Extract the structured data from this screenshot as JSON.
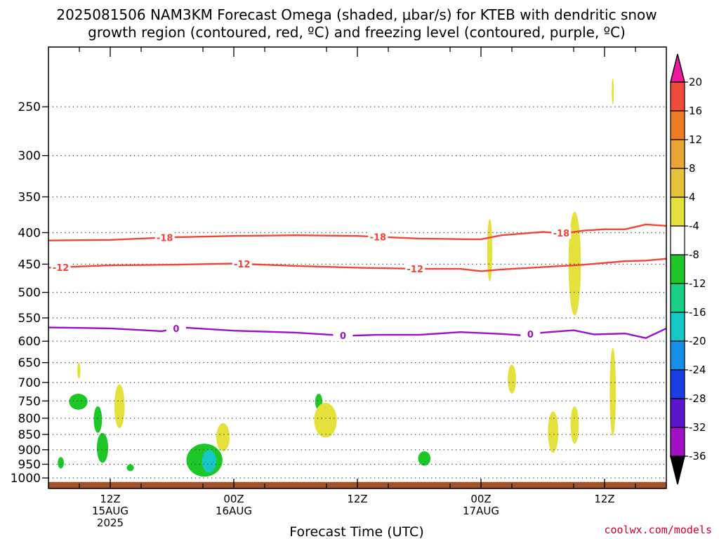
{
  "title": {
    "line1": "2025081506 NAM3KM Forecast Omega (shaded, μbar/s) for KTEB with dendritic snow",
    "line2": "growth region (contoured, red, ºC) and freezing level (contoured, purple, ºC)"
  },
  "credit": "coolwx.com/models",
  "chart_data": {
    "type": "time-height",
    "xlabel": "Forecast Time (UTC)",
    "ylabel": "",
    "y_scale": "log-pressure",
    "ylim": [
      1040,
      200
    ],
    "grid": true,
    "x_range_hours": [
      0,
      60
    ],
    "y_ticks": [
      250,
      300,
      350,
      400,
      450,
      500,
      550,
      600,
      650,
      700,
      750,
      800,
      850,
      900,
      950,
      1000
    ],
    "x_ticks": [
      {
        "hour": 6,
        "label": "12Z",
        "date": "15AUG",
        "year": "2025"
      },
      {
        "hour": 18,
        "label": "00Z",
        "date": "16AUG",
        "year": ""
      },
      {
        "hour": 30,
        "label": "12Z",
        "date": "",
        "year": ""
      },
      {
        "hour": 42,
        "label": "00Z",
        "date": "17AUG",
        "year": ""
      },
      {
        "hour": 54,
        "label": "12Z",
        "date": "",
        "year": ""
      }
    ],
    "colorbar": {
      "labels": [
        "20",
        "16",
        "12",
        "8",
        "4",
        "-4",
        "-8",
        "-12",
        "-16",
        "-20",
        "-24",
        "-28",
        "-32",
        "-36"
      ],
      "colors": [
        "#ee1a9e",
        "#f04a3a",
        "#ef7a26",
        "#e9a637",
        "#e6c23a",
        "#e4e03c",
        "#ffffff",
        "#1dc826",
        "#19cf84",
        "#17c7c6",
        "#1590e8",
        "#1b3ee4",
        "#5c15c8",
        "#a30fc6",
        "#a5a5a5",
        "#000000"
      ]
    },
    "contours": [
      {
        "name": "-18",
        "color": "#f0453a",
        "label_hours": [
          11.3,
          32.0,
          49.8
        ],
        "points": [
          [
            0,
            412
          ],
          [
            6,
            411
          ],
          [
            12,
            407
          ],
          [
            18,
            405
          ],
          [
            24,
            404
          ],
          [
            30,
            405
          ],
          [
            36,
            409
          ],
          [
            41,
            410
          ],
          [
            42,
            410
          ],
          [
            44,
            404
          ],
          [
            48,
            399
          ],
          [
            50,
            401
          ],
          [
            52,
            397
          ],
          [
            54,
            395
          ],
          [
            56,
            395
          ],
          [
            58,
            388
          ],
          [
            60,
            390
          ]
        ]
      },
      {
        "name": "-12",
        "color": "#f0453a",
        "label_hours": [
          1.2,
          18.8,
          35.6
        ],
        "points": [
          [
            0,
            456
          ],
          [
            6,
            452
          ],
          [
            12,
            451
          ],
          [
            18,
            449
          ],
          [
            24,
            453
          ],
          [
            30,
            456
          ],
          [
            36,
            458
          ],
          [
            40,
            458
          ],
          [
            42,
            462
          ],
          [
            44,
            459
          ],
          [
            48,
            455
          ],
          [
            52,
            451
          ],
          [
            56,
            445
          ],
          [
            58,
            444
          ],
          [
            60,
            441
          ]
        ]
      },
      {
        "name": "0",
        "color": "#9b12c6",
        "label_hours": [
          12.4,
          28.6,
          46.8
        ],
        "points": [
          [
            0,
            570
          ],
          [
            6,
            572
          ],
          [
            11,
            578
          ],
          [
            13,
            570
          ],
          [
            18,
            577
          ],
          [
            24,
            581
          ],
          [
            29,
            588
          ],
          [
            32,
            586
          ],
          [
            36,
            586
          ],
          [
            40,
            580
          ],
          [
            44,
            584
          ],
          [
            46,
            587
          ],
          [
            48,
            581
          ],
          [
            51,
            576
          ],
          [
            53,
            585
          ],
          [
            56,
            583
          ],
          [
            58,
            593
          ],
          [
            60,
            572
          ]
        ]
      }
    ],
    "shading": [
      {
        "value": -8,
        "hour_range": [
          0.9,
          1.5
        ],
        "p_range": [
          925,
          965
        ]
      },
      {
        "value": -8,
        "hour_range": [
          2.0,
          3.8
        ],
        "p_range": [
          730,
          775
        ]
      },
      {
        "value": -8,
        "hour_range": [
          4.4,
          5.2
        ],
        "p_range": [
          765,
          845
        ]
      },
      {
        "value": -8,
        "hour_range": [
          4.7,
          5.8
        ],
        "p_range": [
          845,
          945
        ]
      },
      {
        "value": -8,
        "hour_range": [
          7.6,
          8.3
        ],
        "p_range": [
          950,
          975
        ]
      },
      {
        "value": -8,
        "hour_range": [
          13.4,
          16.9
        ],
        "p_range": [
          880,
          995
        ]
      },
      {
        "value": -16,
        "hour_range": [
          14.9,
          16.3
        ],
        "p_range": [
          900,
          980
        ]
      },
      {
        "value": -8,
        "hour_range": [
          25.9,
          26.6
        ],
        "p_range": [
          730,
          775
        ]
      },
      {
        "value": -8,
        "hour_range": [
          35.9,
          37.1
        ],
        "p_range": [
          905,
          955
        ]
      },
      {
        "value": 4,
        "hour_range": [
          2.8,
          3.1
        ],
        "p_range": [
          650,
          690
        ]
      },
      {
        "value": 4,
        "hour_range": [
          6.4,
          7.4
        ],
        "p_range": [
          705,
          830
        ]
      },
      {
        "value": 4,
        "hour_range": [
          16.3,
          17.6
        ],
        "p_range": [
          815,
          905
        ]
      },
      {
        "value": 4,
        "hour_range": [
          25.8,
          28.0
        ],
        "p_range": [
          755,
          860
        ]
      },
      {
        "value": 4,
        "hour_range": [
          42.6,
          43.1
        ],
        "p_range": [
          380,
          480
        ]
      },
      {
        "value": 4,
        "hour_range": [
          44.6,
          45.4
        ],
        "p_range": [
          655,
          730
        ]
      },
      {
        "value": 4,
        "hour_range": [
          48.5,
          49.5
        ],
        "p_range": [
          780,
          910
        ]
      },
      {
        "value": 4,
        "hour_range": [
          50.5,
          51.7
        ],
        "p_range": [
          370,
          545
        ]
      },
      {
        "value": 4,
        "hour_range": [
          50.7,
          51.5
        ],
        "p_range": [
          765,
          880
        ]
      },
      {
        "value": 4,
        "hour_range": [
          54.5,
          55.1
        ],
        "p_range": [
          615,
          855
        ]
      },
      {
        "value": 4,
        "hour_range": [
          54.7,
          54.9
        ],
        "p_range": [
          225,
          248
        ]
      }
    ]
  }
}
